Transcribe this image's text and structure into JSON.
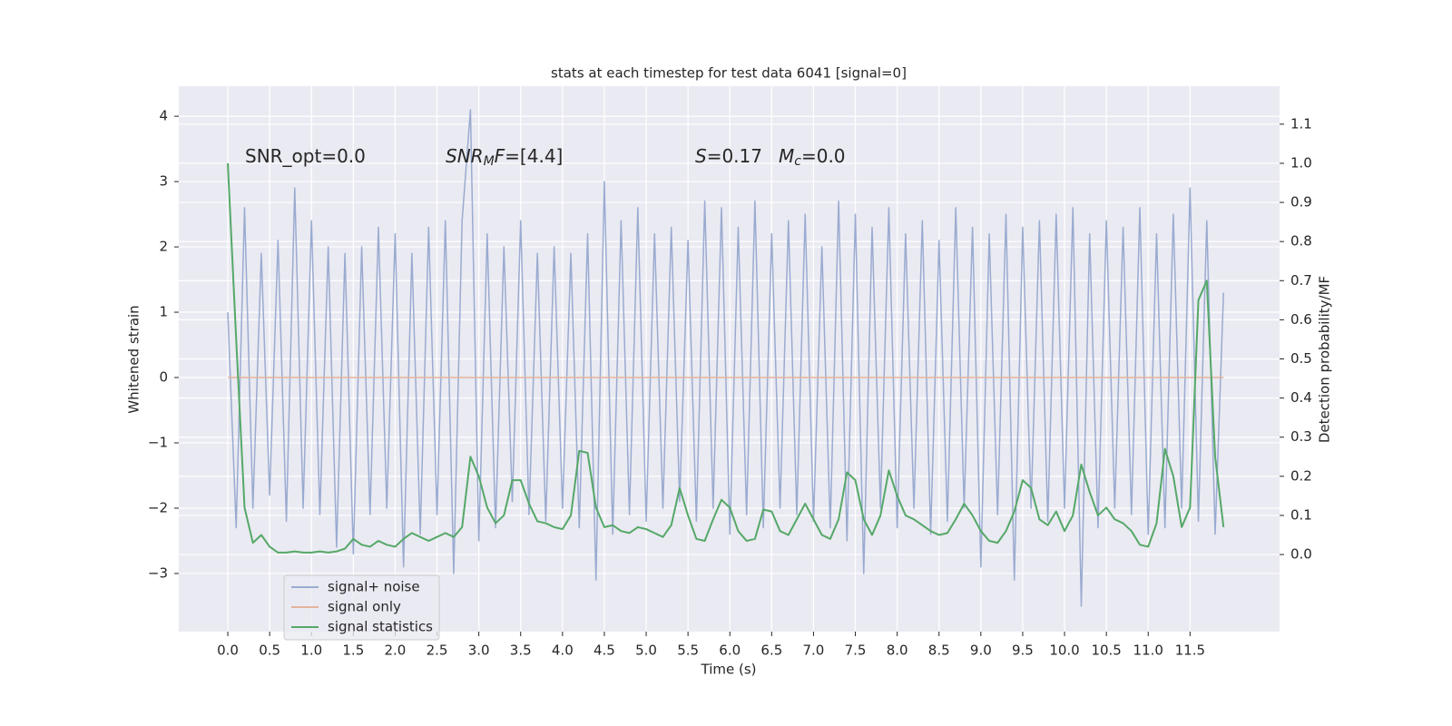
{
  "chart_data": {
    "type": "line",
    "title": "stats at each timestep for test data 6041 [signal=0]",
    "xlabel": "Time (s)",
    "ylabel": "Whitened strain",
    "y2label": "Detection probability/MF",
    "annotations": [
      {
        "parts": [
          {
            "text": "SNR_opt=0.0",
            "style": "normal"
          }
        ]
      },
      {
        "parts": [
          {
            "text": "SNR",
            "style": "italic"
          },
          {
            "text": "M",
            "style": "sub"
          },
          {
            "text": "F",
            "style": "italic"
          },
          {
            "text": "=[4.4]",
            "style": "normal"
          }
        ]
      },
      {
        "parts": [
          {
            "text": "S",
            "style": "italic"
          },
          {
            "text": "=0.17",
            "style": "normal"
          },
          {
            "text": "M",
            "style": "italic"
          },
          {
            "text": "c",
            "style": "sub"
          },
          {
            "text": "=0.0",
            "style": "normal"
          }
        ]
      }
    ],
    "x": [
      0,
      0.1,
      0.2,
      0.3,
      0.4,
      0.5,
      0.6,
      0.7,
      0.8,
      0.9,
      1,
      1.1,
      1.2,
      1.3,
      1.4,
      1.5,
      1.6,
      1.7,
      1.8,
      1.9,
      2,
      2.1,
      2.2,
      2.3,
      2.4,
      2.5,
      2.6,
      2.7,
      2.8,
      2.9,
      3,
      3.1,
      3.2,
      3.3,
      3.4,
      3.5,
      3.6,
      3.7,
      3.8,
      3.9,
      4,
      4.1,
      4.2,
      4.3,
      4.4,
      4.5,
      4.6,
      4.7,
      4.8,
      4.9,
      5,
      5.1,
      5.2,
      5.3,
      5.4,
      5.5,
      5.6,
      5.7,
      5.8,
      5.9,
      6,
      6.1,
      6.2,
      6.3,
      6.4,
      6.5,
      6.6,
      6.7,
      6.8,
      6.9,
      7,
      7.1,
      7.2,
      7.3,
      7.4,
      7.5,
      7.6,
      7.7,
      7.8,
      7.9,
      8,
      8.1,
      8.2,
      8.3,
      8.4,
      8.5,
      8.6,
      8.7,
      8.8,
      8.9,
      9,
      9.1,
      9.2,
      9.3,
      9.4,
      9.5,
      9.6,
      9.7,
      9.8,
      9.9,
      10,
      10.1,
      10.2,
      10.3,
      10.4,
      10.5,
      10.6,
      10.7,
      10.8,
      10.9,
      11,
      11.1,
      11.2,
      11.3,
      11.4,
      11.5,
      11.6,
      11.7,
      11.8,
      11.9
    ],
    "series": [
      {
        "name": "signal+ noise",
        "color": "#9aabd0",
        "axis": "y",
        "values": [
          1.0,
          -2.3,
          2.6,
          -2.0,
          1.9,
          -1.8,
          2.1,
          -2.2,
          2.9,
          -2.0,
          2.4,
          -2.1,
          2.0,
          -2.6,
          1.9,
          -2.7,
          2.0,
          -2.1,
          2.3,
          -2.0,
          2.2,
          -2.9,
          1.9,
          -2.4,
          2.3,
          -2.1,
          2.4,
          -3.0,
          2.4,
          4.1,
          -2.5,
          2.2,
          -2.3,
          2.0,
          -1.9,
          2.4,
          -2.1,
          1.9,
          -2.2,
          2.0,
          -2.0,
          1.9,
          -2.3,
          2.2,
          -3.1,
          3.0,
          -2.4,
          2.4,
          -2.1,
          2.6,
          -2.2,
          2.2,
          -2.0,
          2.3,
          -1.9,
          2.1,
          -2.2,
          2.7,
          -2.0,
          2.6,
          -2.4,
          2.3,
          -2.1,
          2.7,
          -2.3,
          2.2,
          -2.0,
          2.4,
          -2.1,
          2.5,
          -2.2,
          2.0,
          -2.3,
          2.7,
          -2.5,
          2.5,
          -3.0,
          2.3,
          -2.0,
          2.6,
          -2.3,
          2.2,
          -2.0,
          2.4,
          -2.4,
          2.1,
          -2.2,
          2.6,
          -2.0,
          2.3,
          -2.9,
          2.2,
          -2.1,
          2.5,
          -3.1,
          2.3,
          -2.0,
          2.4,
          -2.2,
          2.5,
          -2.0,
          2.6,
          -3.5,
          2.2,
          -2.3,
          2.4,
          -2.0,
          2.3,
          -2.1,
          2.6,
          -2.4,
          2.2,
          -2.3,
          2.5,
          -2.0,
          2.9,
          -2.2,
          2.4,
          -2.4,
          1.3
        ]
      },
      {
        "name": "signal only",
        "color": "#e4b39c",
        "axis": "y",
        "values": [
          0,
          0,
          0,
          0,
          0,
          0,
          0,
          0,
          0,
          0,
          0,
          0,
          0,
          0,
          0,
          0,
          0,
          0,
          0,
          0,
          0,
          0,
          0,
          0,
          0,
          0,
          0,
          0,
          0,
          0,
          0,
          0,
          0,
          0,
          0,
          0,
          0,
          0,
          0,
          0,
          0,
          0,
          0,
          0,
          0,
          0,
          0,
          0,
          0,
          0,
          0,
          0,
          0,
          0,
          0,
          0,
          0,
          0,
          0,
          0,
          0,
          0,
          0,
          0,
          0,
          0,
          0,
          0,
          0,
          0,
          0,
          0,
          0,
          0,
          0,
          0,
          0,
          0,
          0,
          0,
          0,
          0,
          0,
          0,
          0,
          0,
          0,
          0,
          0,
          0,
          0,
          0,
          0,
          0,
          0,
          0,
          0,
          0,
          0,
          0,
          0,
          0,
          0,
          0,
          0,
          0,
          0,
          0,
          0,
          0,
          0,
          0,
          0,
          0,
          0,
          0,
          0,
          0,
          0,
          0
        ]
      },
      {
        "name": "signal statistics",
        "color": "#55a868",
        "axis": "y2",
        "values": [
          1.0,
          0.55,
          0.12,
          0.03,
          0.05,
          0.02,
          0.005,
          0.005,
          0.008,
          0.005,
          0.005,
          0.008,
          0.005,
          0.008,
          0.015,
          0.04,
          0.025,
          0.02,
          0.035,
          0.025,
          0.02,
          0.04,
          0.055,
          0.045,
          0.035,
          0.045,
          0.055,
          0.045,
          0.07,
          0.25,
          0.2,
          0.12,
          0.08,
          0.1,
          0.19,
          0.19,
          0.13,
          0.085,
          0.08,
          0.07,
          0.065,
          0.1,
          0.265,
          0.26,
          0.12,
          0.07,
          0.075,
          0.06,
          0.055,
          0.07,
          0.065,
          0.055,
          0.045,
          0.075,
          0.17,
          0.1,
          0.04,
          0.035,
          0.09,
          0.14,
          0.12,
          0.06,
          0.035,
          0.04,
          0.115,
          0.11,
          0.06,
          0.05,
          0.09,
          0.13,
          0.09,
          0.05,
          0.04,
          0.09,
          0.21,
          0.19,
          0.09,
          0.05,
          0.1,
          0.215,
          0.15,
          0.1,
          0.09,
          0.075,
          0.06,
          0.05,
          0.055,
          0.09,
          0.13,
          0.1,
          0.06,
          0.035,
          0.03,
          0.06,
          0.11,
          0.19,
          0.17,
          0.09,
          0.075,
          0.11,
          0.06,
          0.1,
          0.23,
          0.16,
          0.1,
          0.12,
          0.09,
          0.08,
          0.06,
          0.025,
          0.02,
          0.08,
          0.27,
          0.2,
          0.07,
          0.12,
          0.65,
          0.7,
          0.25,
          0.07
        ]
      }
    ],
    "xlim": [
      -0.586,
      12.57
    ],
    "ylim": [
      -3.89,
      4.46
    ],
    "y2lim": [
      -0.197,
      1.197
    ],
    "xticks": [
      {
        "value": 0,
        "label": "0.0"
      },
      {
        "value": 0.5,
        "label": "0.5"
      },
      {
        "value": 1,
        "label": "1.0"
      },
      {
        "value": 1.5,
        "label": "1.5"
      },
      {
        "value": 2,
        "label": "2.0"
      },
      {
        "value": 2.5,
        "label": "2.5"
      },
      {
        "value": 3,
        "label": "3.0"
      },
      {
        "value": 3.5,
        "label": "3.5"
      },
      {
        "value": 4,
        "label": "4.0"
      },
      {
        "value": 4.5,
        "label": "4.5"
      },
      {
        "value": 5,
        "label": "5.0"
      },
      {
        "value": 5.5,
        "label": "5.5"
      },
      {
        "value": 6,
        "label": "6.0"
      },
      {
        "value": 6.5,
        "label": "6.5"
      },
      {
        "value": 7,
        "label": "7.0"
      },
      {
        "value": 7.5,
        "label": "7.5"
      },
      {
        "value": 8,
        "label": "8.0"
      },
      {
        "value": 8.5,
        "label": "8.5"
      },
      {
        "value": 9,
        "label": "9.0"
      },
      {
        "value": 9.5,
        "label": "9.5"
      },
      {
        "value": 10,
        "label": "10.0"
      },
      {
        "value": 10.5,
        "label": "10.5"
      },
      {
        "value": 11,
        "label": "11.0"
      },
      {
        "value": 11.5,
        "label": "11.5"
      }
    ],
    "yticks": [
      {
        "value": -3,
        "label": "−3"
      },
      {
        "value": -2,
        "label": "−2"
      },
      {
        "value": -1,
        "label": "−1"
      },
      0,
      1,
      2,
      3,
      4
    ],
    "y2ticks": [
      {
        "value": 0,
        "label": "0.0"
      },
      {
        "value": 0.1,
        "label": "0.1"
      },
      {
        "value": 0.2,
        "label": "0.2"
      },
      {
        "value": 0.3,
        "label": "0.3"
      },
      {
        "value": 0.4,
        "label": "0.4"
      },
      {
        "value": 0.5,
        "label": "0.5"
      },
      {
        "value": 0.6,
        "label": "0.6"
      },
      {
        "value": 0.7,
        "label": "0.7"
      },
      {
        "value": 0.8,
        "label": "0.8"
      },
      {
        "value": 0.9,
        "label": "0.9"
      },
      {
        "value": 1,
        "label": "1.0"
      },
      {
        "value": 1.1,
        "label": "1.1"
      }
    ],
    "grid": true,
    "legend_loc": "lower left"
  }
}
